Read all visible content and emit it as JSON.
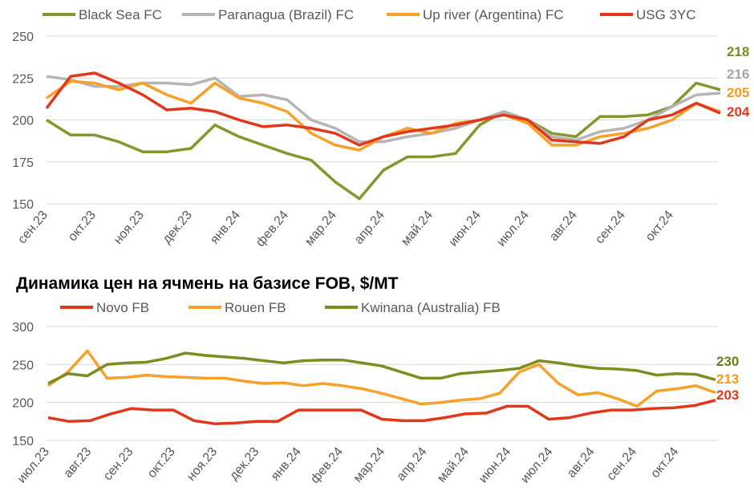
{
  "chart_data": [
    {
      "type": "line",
      "title": "",
      "xlabel": "",
      "ylabel": "",
      "ylim": [
        150,
        250
      ],
      "yticks": [
        150,
        175,
        200,
        225,
        250
      ],
      "grid": true,
      "legend_placement": "top",
      "x_tick_labels": [
        "сен.23",
        "окт.23",
        "ноя.23",
        "дек.23",
        "янв.24",
        "фев.24",
        "мар.24",
        "апр.24",
        "май.24",
        "июн.24",
        "июл.24",
        "авг.24",
        "сен.24",
        "окт.24"
      ],
      "x_step": "half-month from Sep 2023",
      "series": [
        {
          "name": "Black Sea FC",
          "color": "#87962c",
          "label_color": "#7c8a1e",
          "end_label": "218",
          "values": [
            200,
            191,
            191,
            187,
            181,
            181,
            183,
            197,
            190,
            185,
            180,
            176,
            163,
            153,
            170,
            178,
            178,
            180,
            197,
            205,
            200,
            192,
            190,
            202,
            202,
            203,
            208,
            222,
            218
          ]
        },
        {
          "name": "Paranagua (Brazil) FC",
          "color": "#b5b5b5",
          "label_color": "#a6a6a6",
          "end_label": "216",
          "values": [
            226,
            224,
            220,
            220,
            222,
            222,
            221,
            225,
            214,
            215,
            212,
            200,
            195,
            187,
            187,
            190,
            192,
            195,
            200,
            205,
            200,
            190,
            188,
            193,
            195,
            200,
            208,
            215,
            216
          ]
        },
        {
          "name": "Up river (Argentina) FC",
          "color": "#f7a02a",
          "label_color": "#f39a1c",
          "end_label": "205",
          "values": [
            213,
            223,
            222,
            218,
            222,
            215,
            210,
            222,
            213,
            210,
            205,
            192,
            185,
            182,
            190,
            195,
            192,
            198,
            200,
            203,
            198,
            185,
            185,
            190,
            192,
            195,
            200,
            210,
            205
          ]
        },
        {
          "name": "USG 3YC",
          "color": "#e1381b",
          "label_color": "#e1381b",
          "end_label": "204",
          "values": [
            207,
            226,
            228,
            222,
            215,
            206,
            207,
            205,
            200,
            196,
            197,
            195,
            192,
            185,
            190,
            193,
            195,
            197,
            200,
            203,
            200,
            188,
            187,
            186,
            190,
            200,
            203,
            210,
            204
          ]
        }
      ]
    },
    {
      "type": "line",
      "title": "Динамика цен на ячмень на базисе FOB, $/MT",
      "xlabel": "",
      "ylabel": "",
      "ylim": [
        150,
        300
      ],
      "yticks": [
        150,
        200,
        250,
        300
      ],
      "grid": true,
      "legend_placement": "top",
      "x_tick_labels": [
        "июл.23",
        "авг.23",
        "сен.23",
        "окт.23",
        "ноя.23",
        "дек.23",
        "янв.24",
        "фев.24",
        "мар.24",
        "апр.24",
        "май.24",
        "июн.24",
        "июл.24",
        "авг.24",
        "сен.24",
        "окт.24"
      ],
      "x_step": "half-month from Jul 2023",
      "series": [
        {
          "name": "Novo FB",
          "color": "#e1381b",
          "label_color": "#e1381b",
          "end_label": "203",
          "values": [
            180,
            175,
            176,
            185,
            192,
            190,
            190,
            176,
            172,
            173,
            175,
            175,
            190,
            190,
            190,
            190,
            178,
            176,
            176,
            180,
            185,
            186,
            195,
            195,
            178,
            180,
            186,
            190,
            190,
            192,
            193,
            196,
            203
          ]
        },
        {
          "name": "Rouen FB",
          "color": "#f7a02a",
          "label_color": "#f39a1c",
          "end_label": "213",
          "values": [
            222,
            240,
            268,
            232,
            233,
            236,
            234,
            233,
            232,
            232,
            228,
            225,
            226,
            222,
            225,
            222,
            218,
            212,
            205,
            198,
            200,
            203,
            205,
            212,
            240,
            250,
            225,
            210,
            213,
            205,
            195,
            215,
            218,
            222,
            213
          ]
        },
        {
          "name": "Kwinana (Australia) FB",
          "color": "#7f8c1f",
          "label_color": "#6f7c16",
          "end_label": "230",
          "values": [
            225,
            238,
            235,
            250,
            252,
            253,
            258,
            265,
            262,
            260,
            258,
            255,
            252,
            255,
            256,
            256,
            252,
            248,
            240,
            232,
            232,
            238,
            240,
            242,
            245,
            255,
            252,
            248,
            245,
            244,
            242,
            236,
            238,
            237,
            230
          ]
        }
      ]
    }
  ]
}
